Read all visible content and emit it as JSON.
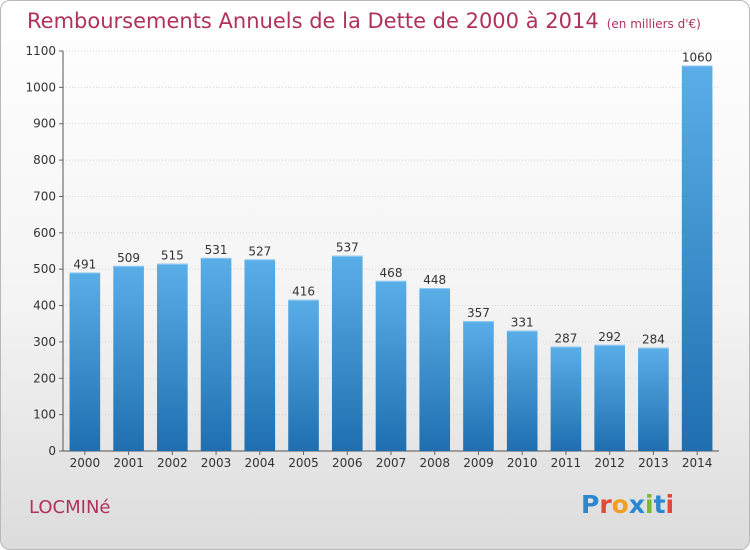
{
  "title": "Remboursements Annuels de la Dette de 2000 à 2014",
  "unit": "(en milliers d'€)",
  "place": "LOCMINé",
  "logo": "Proxiti",
  "colors": {
    "title": "#b0325a",
    "bar_top": "#5aaee8",
    "bar_bottom": "#1f6fb0",
    "logo": [
      "#2a88d0",
      "#e04a3a",
      "#f0a020",
      "#2a88d0",
      "#7ab830",
      "#2a88d0",
      "#e04a3a"
    ]
  },
  "chart_data": {
    "type": "bar",
    "categories": [
      "2000",
      "2001",
      "2002",
      "2003",
      "2004",
      "2005",
      "2006",
      "2007",
      "2008",
      "2009",
      "2010",
      "2011",
      "2012",
      "2013",
      "2014"
    ],
    "values": [
      491,
      509,
      515,
      531,
      527,
      416,
      537,
      468,
      448,
      357,
      331,
      287,
      292,
      284,
      1060
    ],
    "ylim": [
      0,
      1100
    ],
    "yticks": [
      0,
      100,
      200,
      300,
      400,
      500,
      600,
      700,
      800,
      900,
      1000,
      1100
    ],
    "grid": true
  }
}
